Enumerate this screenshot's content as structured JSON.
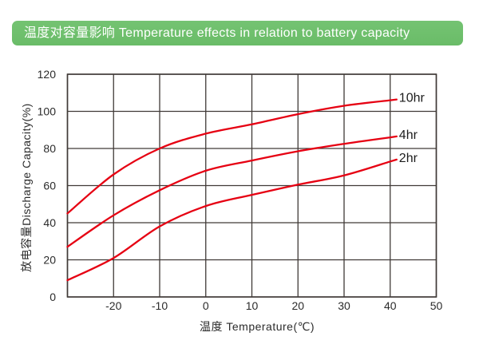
{
  "banner": {
    "title": "温度对容量影响 Temperature effects in relation to battery capacity",
    "bg_color": "#6abc68",
    "bg_color_top": "#74c372",
    "text_color": "#ffffff"
  },
  "chart_data": {
    "type": "line",
    "title": "温度对容量影响 Temperature effects in relation to battery capacity",
    "xlabel": "温度 Temperature(℃)",
    "ylabel": "放电容量Discharge Capacity(%)",
    "xlim": [
      -30,
      50
    ],
    "ylim": [
      0,
      120
    ],
    "x_ticks": [
      -20,
      -10,
      0,
      10,
      20,
      30,
      40,
      50
    ],
    "y_ticks": [
      0,
      20,
      40,
      60,
      80,
      100,
      120
    ],
    "x_gridlines": [
      -30,
      -20,
      -10,
      0,
      10,
      20,
      30,
      40,
      50
    ],
    "grid": true,
    "legend_position": "right-end-of-line labels",
    "x": [
      -30,
      -20,
      -10,
      0,
      10,
      20,
      30,
      40
    ],
    "series": [
      {
        "name": "10hr",
        "values": [
          45,
          66,
          80,
          88,
          93,
          98.5,
          103,
          106
        ]
      },
      {
        "name": "4hr",
        "values": [
          27,
          44,
          57.5,
          68,
          73.5,
          78.5,
          82.5,
          86
        ]
      },
      {
        "name": "2hr",
        "values": [
          9,
          21,
          38,
          49,
          55,
          60.5,
          65.5,
          73
        ]
      }
    ],
    "line_color": "#e60012",
    "grid_color": "#403a37",
    "tick_color": "#2b2b2b"
  }
}
